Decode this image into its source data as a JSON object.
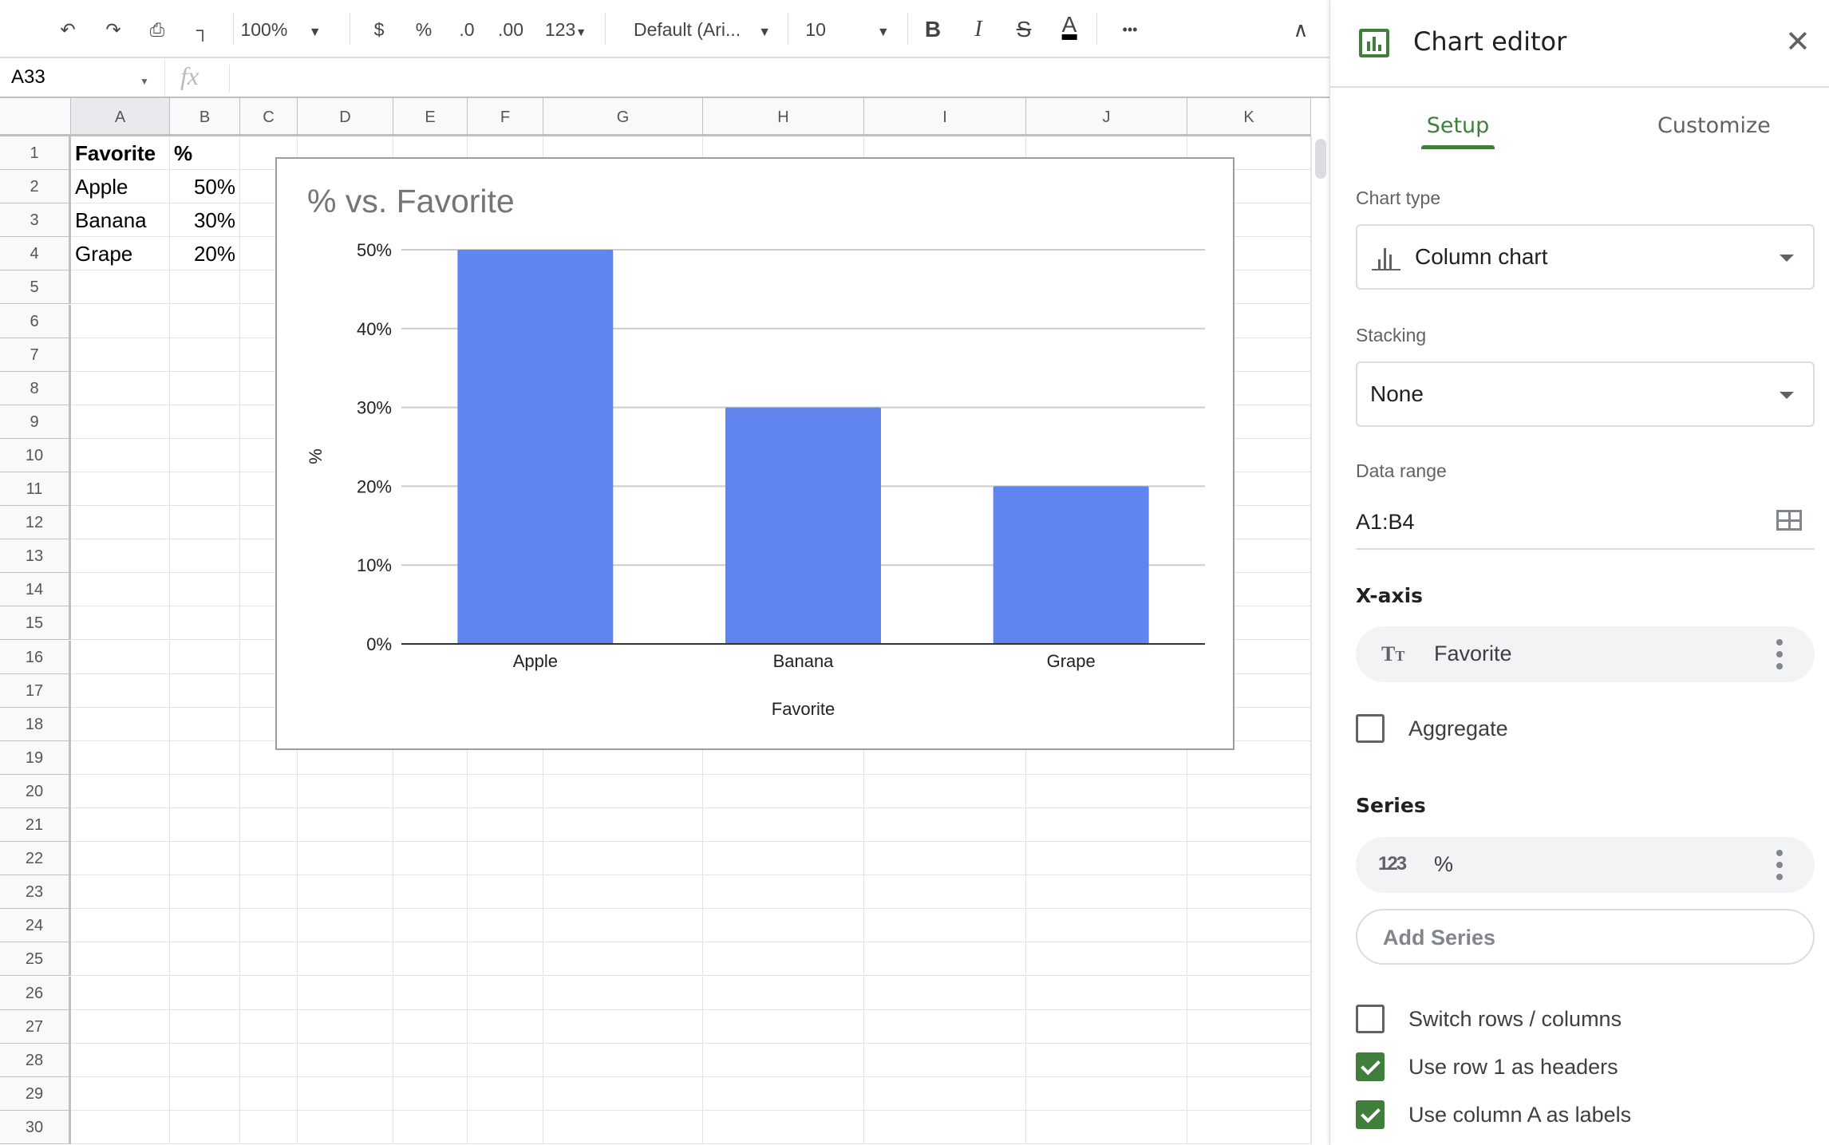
{
  "toolbar": {
    "zoom": "100%",
    "currency": "$",
    "percent": "%",
    "decrease_decimal": ".0",
    "increase_decimal": ".00",
    "more_formats": "123",
    "font": "Default (Ari...",
    "font_size": "10",
    "bold": "B",
    "italic": "I",
    "strikethrough": "S",
    "text_color": "A",
    "text_color_value": "#000000",
    "more": "•••"
  },
  "formula_bar": {
    "name_box": "A33",
    "fx": "fx",
    "value": ""
  },
  "sheet": {
    "columns": [
      "A",
      "B",
      "C",
      "D",
      "E",
      "F",
      "G",
      "H",
      "I",
      "J",
      "K"
    ],
    "row_count": 30,
    "cells": [
      [
        "Favorite",
        "%"
      ],
      [
        "Apple",
        "50%"
      ],
      [
        "Banana",
        "30%"
      ],
      [
        "Grape",
        "20%"
      ]
    ]
  },
  "chart_data": {
    "type": "bar",
    "title": "% vs. Favorite",
    "xlabel": "Favorite",
    "ylabel": "%",
    "categories": [
      "Apple",
      "Banana",
      "Grape"
    ],
    "values": [
      50,
      30,
      20
    ],
    "ylim": [
      0,
      50
    ],
    "yticks": [
      "0%",
      "10%",
      "20%",
      "30%",
      "40%",
      "50%"
    ],
    "grid": true,
    "legend": "none",
    "bar_color": "#6185ee"
  },
  "panel": {
    "title": "Chart editor",
    "tabs": [
      {
        "label": "Setup",
        "active": true
      },
      {
        "label": "Customize",
        "active": false
      }
    ],
    "chart_type_label": "Chart type",
    "chart_type_value": "Column chart",
    "stacking_label": "Stacking",
    "stacking_value": "None",
    "data_range_label": "Data range",
    "data_range_value": "A1:B4",
    "x_axis_label": "X-axis",
    "x_axis_value": "Favorite",
    "aggregate_label": "Aggregate",
    "aggregate_checked": false,
    "series_label": "Series",
    "series_value": "%",
    "series_icon_text": "123",
    "add_series": "Add Series",
    "switch_rows_label": "Switch rows / columns",
    "switch_rows_checked": false,
    "use_row_headers_label": "Use row 1 as headers",
    "use_row_headers_checked": true,
    "use_col_labels_label": "Use column A as labels",
    "use_col_labels_checked": true,
    "accent_color": "#3f7f3b"
  }
}
